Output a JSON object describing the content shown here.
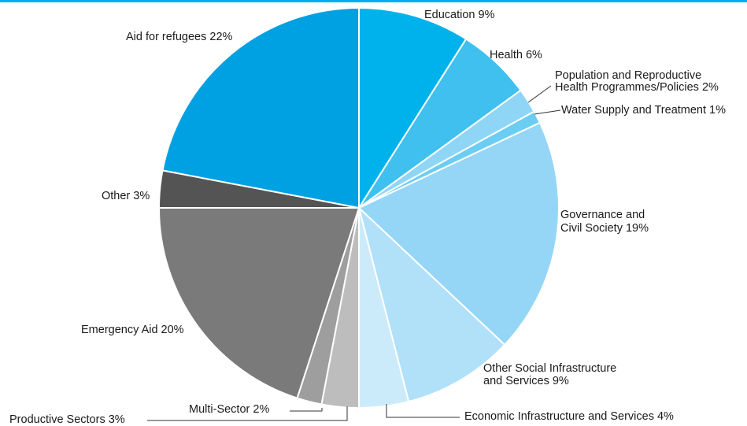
{
  "chart_data": {
    "type": "pie",
    "start_angle_deg": 0,
    "direction": "clockwise",
    "slices": [
      {
        "label": "Education 9%",
        "value": 9,
        "color": "#00b2ec"
      },
      {
        "label": "Health 6%",
        "value": 6,
        "color": "#3fc0ef"
      },
      {
        "label": "Population and Reproductive Health Programmes/Policies 2%",
        "value": 2,
        "color": "#8fd6f6"
      },
      {
        "label": "Water Supply and Treatment 1%",
        "value": 1,
        "color": "#6ccdf3"
      },
      {
        "label": "Governance and Civil Society 19%",
        "value": 19,
        "color": "#95d6f7"
      },
      {
        "label": "Other Social Infrastructure and Services 9%",
        "value": 9,
        "color": "#b1e0f9"
      },
      {
        "label": "Economic Infrastructure and Services 4%",
        "value": 4,
        "color": "#cbebfb"
      },
      {
        "label": "Productive Sectors 3%",
        "value": 3,
        "color": "#bdbdbd"
      },
      {
        "label": "Multi-Sector 2%",
        "value": 2,
        "color": "#9e9e9e"
      },
      {
        "label": "Emergency Aid 20%",
        "value": 20,
        "color": "#7a7a7a"
      },
      {
        "label": "Other 3%",
        "value": 3,
        "color": "#545454"
      },
      {
        "label": "Aid for refugees 22%",
        "value": 22,
        "color": "#00a1e2"
      }
    ],
    "label_lines": {
      "education": "Education 9%",
      "health": "Health 6%",
      "population_1": "Population and Reproductive",
      "population_2": "Health Programmes/Policies 2%",
      "water": "Water Supply and Treatment 1%",
      "governance_1": "Governance and",
      "governance_2": "Civil Society 19%",
      "social_1": "Other Social Infrastructure",
      "social_2": "and Services 9%",
      "economic": "Economic Infrastructure and Services 4%",
      "productive": "Productive Sectors 3%",
      "multisector": "Multi-Sector 2%",
      "emergency": "Emergency Aid 20%",
      "other": "Other 3%",
      "refugees": "Aid for refugees 22%"
    }
  }
}
